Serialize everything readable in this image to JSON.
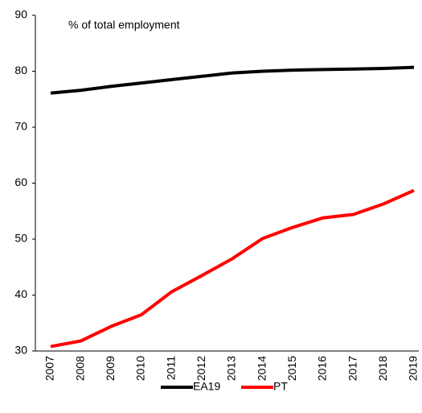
{
  "chart_data": {
    "type": "line",
    "annotation": "% of total employment",
    "x": [
      "2007",
      "2008",
      "2009",
      "2010",
      "2011",
      "2012",
      "2013",
      "2014",
      "2015",
      "2016",
      "2017",
      "2018",
      "2019"
    ],
    "series": [
      {
        "name": "EA19",
        "color": "#000000",
        "values": [
          76.1,
          76.6,
          77.3,
          77.9,
          78.5,
          79.1,
          79.7,
          80.0,
          80.2,
          80.3,
          80.4,
          80.5,
          80.7
        ]
      },
      {
        "name": "PT",
        "color": "#ff0000",
        "values": [
          30.8,
          31.8,
          34.4,
          36.5,
          40.6,
          43.5,
          46.5,
          50.1,
          52.1,
          53.8,
          54.4,
          56.3,
          58.7
        ]
      }
    ],
    "ylim": [
      30,
      90
    ],
    "yticks": [
      30,
      40,
      50,
      60,
      70,
      80,
      90
    ],
    "grid": false,
    "legend": "bottom"
  }
}
